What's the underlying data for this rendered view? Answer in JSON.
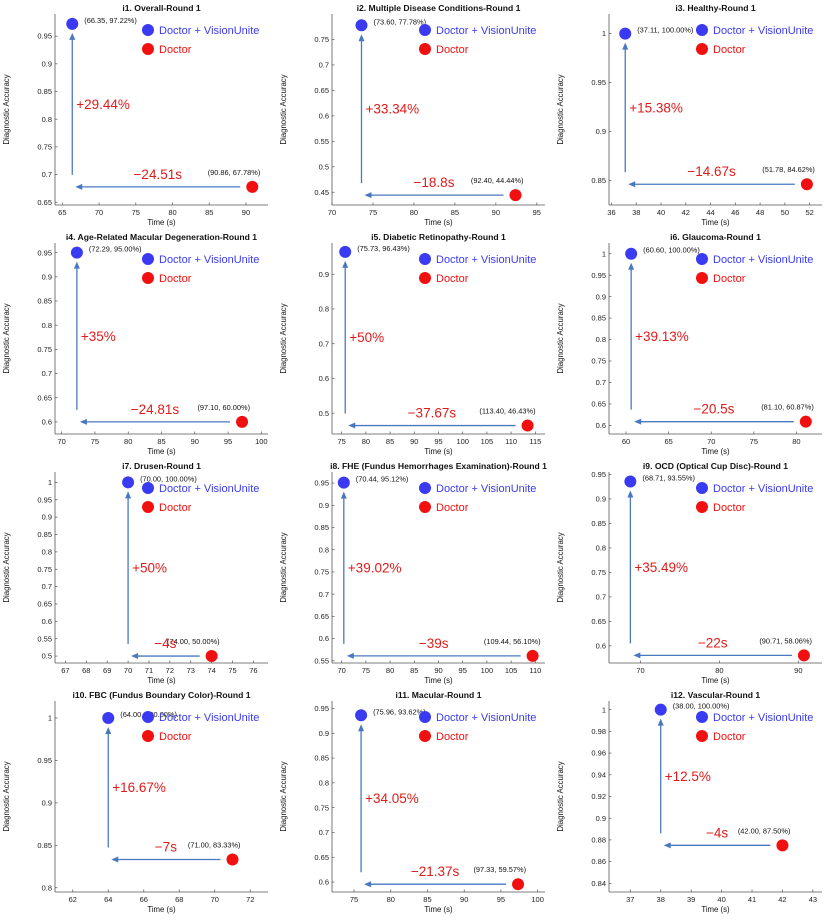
{
  "figure": {
    "legend": {
      "combined": "Doctor + VisionUnite",
      "doctor": "Doctor"
    },
    "colors": {
      "combined": "#3a3af2",
      "doctor": "#f20f0f",
      "arrow": "#4a78c0",
      "delta": "#e01b1b"
    }
  },
  "chart_data": [
    {
      "type": "scatter",
      "title": "i1. Overall-Round 1",
      "xlabel": "Time (s)",
      "ylabel": "Diagnostic Accuracy",
      "xlim": [
        64,
        93
      ],
      "ylim": [
        0.645,
        0.99
      ],
      "xticks": [
        65,
        70,
        75,
        80,
        85,
        90
      ],
      "yticks": [
        0.65,
        0.7,
        0.75,
        0.8,
        0.85,
        0.9,
        0.95
      ],
      "ytick_labels": [
        "0.65",
        "0.7",
        "0.75",
        "0.8",
        "0.85",
        "0.9",
        "0.95"
      ],
      "doctor": {
        "x": 90.86,
        "y": 0.6778,
        "label": "(90.86, 67.78%)"
      },
      "combined": {
        "x": 66.35,
        "y": 0.9722,
        "label": "(66.35, 97.22%)"
      },
      "acc_gain": "+29.44%",
      "time_change": "−24.51s"
    },
    {
      "type": "scatter",
      "title": "i2. Multiple Disease Conditions-Round 1",
      "xlabel": "Time (s)",
      "ylabel": "Diagnostic Accuracy",
      "xlim": [
        70,
        96
      ],
      "ylim": [
        0.425,
        0.8
      ],
      "xticks": [
        70,
        75,
        80,
        85,
        90,
        95
      ],
      "yticks": [
        0.45,
        0.5,
        0.55,
        0.6,
        0.65,
        0.7,
        0.75
      ],
      "ytick_labels": [
        "0.45",
        "0.5",
        "0.55",
        "0.6",
        "0.65",
        "0.7",
        "0.75"
      ],
      "doctor": {
        "x": 92.4,
        "y": 0.4444,
        "label": "(92.40, 44.44%)"
      },
      "combined": {
        "x": 73.6,
        "y": 0.7778,
        "label": "(73.60, 77.78%)"
      },
      "acc_gain": "+33.34%",
      "time_change": "−18.8s"
    },
    {
      "type": "scatter",
      "title": "i3. Healthy-Round 1",
      "xlabel": "Time (s)",
      "ylabel": "Diagnostic Accuracy",
      "xlim": [
        35.8,
        53
      ],
      "ylim": [
        0.825,
        1.02
      ],
      "xticks": [
        36,
        38,
        40,
        42,
        44,
        46,
        48,
        50,
        52
      ],
      "yticks": [
        0.85,
        0.9,
        0.95,
        1
      ],
      "ytick_labels": [
        "0.85",
        "0.9",
        "0.95",
        "1"
      ],
      "doctor": {
        "x": 51.78,
        "y": 0.8462,
        "label": "(51.78, 84.62%)"
      },
      "combined": {
        "x": 37.11,
        "y": 1.0,
        "label": "(37.11, 100.00%)"
      },
      "acc_gain": "+15.38%",
      "time_change": "−14.67s"
    },
    {
      "type": "scatter",
      "title": "i4. Age-Related Macular Degeneration-Round 1",
      "xlabel": "Time (s)",
      "ylabel": "Diagnostic Accuracy",
      "xlim": [
        69,
        101
      ],
      "ylim": [
        0.575,
        0.97
      ],
      "xticks": [
        70,
        75,
        80,
        85,
        90,
        95,
        100
      ],
      "yticks": [
        0.6,
        0.65,
        0.7,
        0.75,
        0.8,
        0.85,
        0.9,
        0.95
      ],
      "ytick_labels": [
        "0.6",
        "0.65",
        "0.7",
        "0.75",
        "0.8",
        "0.85",
        "0.9",
        "0.95"
      ],
      "doctor": {
        "x": 97.1,
        "y": 0.6,
        "label": "(97.10, 60.00%)"
      },
      "combined": {
        "x": 72.29,
        "y": 0.95,
        "label": "(72.29, 95.00%)"
      },
      "acc_gain": "+35%",
      "time_change": "−24.81s"
    },
    {
      "type": "scatter",
      "title": "i5. Diabetic Retinopathy-Round 1",
      "xlabel": "Time (s)",
      "ylabel": "Diagnostic Accuracy",
      "xlim": [
        73,
        117
      ],
      "ylim": [
        0.44,
        0.99
      ],
      "xticks": [
        75,
        80,
        85,
        90,
        95,
        100,
        105,
        110,
        115
      ],
      "yticks": [
        0.5,
        0.6,
        0.7,
        0.8,
        0.9
      ],
      "ytick_labels": [
        "0.5",
        "0.6",
        "0.7",
        "0.8",
        "0.9"
      ],
      "doctor": {
        "x": 113.4,
        "y": 0.4643,
        "label": "(113.40, 46.43%)"
      },
      "combined": {
        "x": 75.73,
        "y": 0.9643,
        "label": "(75.73, 96.43%)"
      },
      "acc_gain": "+50%",
      "time_change": "−37.67s"
    },
    {
      "type": "scatter",
      "title": "i6. Glaucoma-Round 1",
      "xlabel": "Time (s)",
      "ylabel": "Diagnostic Accuracy",
      "xlim": [
        58,
        83
      ],
      "ylim": [
        0.58,
        1.025
      ],
      "xticks": [
        60,
        65,
        70,
        75,
        80
      ],
      "yticks": [
        0.6,
        0.65,
        0.7,
        0.75,
        0.8,
        0.85,
        0.9,
        0.95,
        1
      ],
      "ytick_labels": [
        "0.6",
        "0.65",
        "0.7",
        "0.75",
        "0.8",
        "0.85",
        "0.9",
        "0.95",
        "1"
      ],
      "doctor": {
        "x": 81.1,
        "y": 0.6087,
        "label": "(81.10, 60.87%)"
      },
      "combined": {
        "x": 60.6,
        "y": 1.0,
        "label": "(60.60, 100.00%)"
      },
      "acc_gain": "+39.13%",
      "time_change": "−20.5s"
    },
    {
      "type": "scatter",
      "title": "i7. Drusen-Round 1",
      "xlabel": "Time (s)",
      "ylabel": "Diagnostic Accuracy",
      "xlim": [
        66.5,
        76.7
      ],
      "ylim": [
        0.48,
        1.03
      ],
      "xticks": [
        67,
        68,
        69,
        70,
        71,
        72,
        73,
        74,
        75,
        76
      ],
      "yticks": [
        0.5,
        0.55,
        0.6,
        0.65,
        0.7,
        0.75,
        0.8,
        0.85,
        0.9,
        0.95,
        1
      ],
      "ytick_labels": [
        "0.5",
        "0.55",
        "0.6",
        "0.65",
        "0.7",
        "0.75",
        "0.8",
        "0.85",
        "0.9",
        "0.95",
        "1"
      ],
      "doctor": {
        "x": 74.0,
        "y": 0.5,
        "label": "(74.00, 50.00%)"
      },
      "combined": {
        "x": 70.0,
        "y": 1.0,
        "label": "(70.00, 100.00%)"
      },
      "acc_gain": "+50%",
      "time_change": "−4s"
    },
    {
      "type": "scatter",
      "title": "i8. FHE (Fundus Hemorrhages Examination)-Round 1",
      "xlabel": "Time (s)",
      "ylabel": "Diagnostic Accuracy",
      "xlim": [
        68,
        112
      ],
      "ylim": [
        0.545,
        0.975
      ],
      "xticks": [
        70,
        75,
        80,
        85,
        90,
        95,
        100,
        105,
        110
      ],
      "yticks": [
        0.55,
        0.6,
        0.65,
        0.7,
        0.75,
        0.8,
        0.85,
        0.9,
        0.95
      ],
      "ytick_labels": [
        "0.55",
        "0.6",
        "0.65",
        "0.7",
        "0.75",
        "0.8",
        "0.85",
        "0.9",
        "0.95"
      ],
      "doctor": {
        "x": 109.44,
        "y": 0.561,
        "label": "(109.44, 56.10%)"
      },
      "combined": {
        "x": 70.44,
        "y": 0.9512,
        "label": "(70.44, 95.12%)"
      },
      "acc_gain": "+39.02%",
      "time_change": "−39s"
    },
    {
      "type": "scatter",
      "title": "i9. OCD (Optical Cup Disc)-Round 1",
      "xlabel": "Time (s)",
      "ylabel": "Diagnostic Accuracy",
      "xlim": [
        66,
        93
      ],
      "ylim": [
        0.565,
        0.955
      ],
      "xticks": [
        70,
        80,
        90
      ],
      "yticks": [
        0.6,
        0.65,
        0.7,
        0.75,
        0.8,
        0.85,
        0.9,
        0.95
      ],
      "ytick_labels": [
        "0.6",
        "0.65",
        "0.7",
        "0.75",
        "0.8",
        "0.85",
        "0.9",
        "0.95"
      ],
      "doctor": {
        "x": 90.71,
        "y": 0.5806,
        "label": "(90.71, 58.06%)"
      },
      "combined": {
        "x": 68.71,
        "y": 0.9355,
        "label": "(68.71, 93.55%)"
      },
      "acc_gain": "+35.49%",
      "time_change": "−22s"
    },
    {
      "type": "scatter",
      "title": "i10. FBC (Fundus Boundary Color)-Round 1",
      "xlabel": "Time (s)",
      "ylabel": "Diagnostic Accuracy",
      "xlim": [
        61,
        73
      ],
      "ylim": [
        0.795,
        1.02
      ],
      "xticks": [
        62,
        64,
        66,
        68,
        70,
        72
      ],
      "yticks": [
        0.8,
        0.85,
        0.9,
        0.95,
        1
      ],
      "ytick_labels": [
        "0.8",
        "0.85",
        "0.9",
        "0.95",
        "1"
      ],
      "doctor": {
        "x": 71.0,
        "y": 0.8333,
        "label": "(71.00, 83.33%)"
      },
      "combined": {
        "x": 64.0,
        "y": 1.0,
        "label": "(64.00, 100.00%)"
      },
      "acc_gain": "+16.67%",
      "time_change": "−7s"
    },
    {
      "type": "scatter",
      "title": "i11. Macular-Round 1",
      "xlabel": "Time (s)",
      "ylabel": "Diagnostic Accuracy",
      "xlim": [
        72,
        101
      ],
      "ylim": [
        0.58,
        0.965
      ],
      "xticks": [
        75,
        80,
        85,
        90,
        95,
        100
      ],
      "yticks": [
        0.6,
        0.65,
        0.7,
        0.75,
        0.8,
        0.85,
        0.9,
        0.95
      ],
      "ytick_labels": [
        "0.6",
        "0.65",
        "0.7",
        "0.75",
        "0.8",
        "0.85",
        "0.9",
        "0.95"
      ],
      "doctor": {
        "x": 97.33,
        "y": 0.5957,
        "label": "(97.33, 59.57%)"
      },
      "combined": {
        "x": 75.96,
        "y": 0.9362,
        "label": "(75.96, 93.62%)"
      },
      "acc_gain": "+34.05%",
      "time_change": "−21.37s"
    },
    {
      "type": "scatter",
      "title": "i12. Vascular-Round 1",
      "xlabel": "Time (s)",
      "ylabel": "Diagnostic Accuracy",
      "xlim": [
        36.3,
        43.3
      ],
      "ylim": [
        0.832,
        1.008
      ],
      "xticks": [
        37,
        38,
        39,
        40,
        41,
        42,
        43
      ],
      "yticks": [
        0.84,
        0.86,
        0.88,
        0.9,
        0.92,
        0.94,
        0.96,
        0.98,
        1
      ],
      "ytick_labels": [
        "0.84",
        "0.86",
        "0.88",
        "0.9",
        "0.92",
        "0.94",
        "0.96",
        "0.98",
        "1"
      ],
      "doctor": {
        "x": 42.0,
        "y": 0.875,
        "label": "(42.00, 87.50%)"
      },
      "combined": {
        "x": 38.0,
        "y": 1.0,
        "label": "(38.00, 100.00%)"
      },
      "acc_gain": "+12.5%",
      "time_change": "−4s"
    }
  ]
}
